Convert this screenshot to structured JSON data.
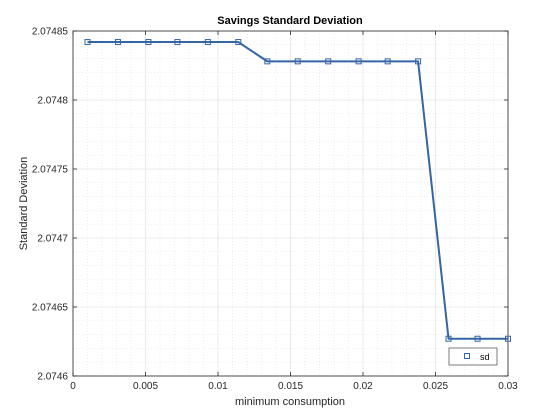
{
  "chart_data": {
    "type": "line",
    "title": "Savings Standard Deviation",
    "xlabel": "minimum consumption",
    "ylabel": "Standard Deviation",
    "xlim": [
      0,
      0.03
    ],
    "ylim": [
      2.0746,
      2.07485
    ],
    "xticks": [
      0,
      0.005,
      0.01,
      0.015,
      0.02,
      0.025,
      0.03
    ],
    "xtick_labels": [
      "0",
      "0.005",
      "0.01",
      "0.015",
      "0.02",
      "0.025",
      "0.03"
    ],
    "yticks": [
      2.0746,
      2.07465,
      2.0747,
      2.07475,
      2.0748,
      2.07485
    ],
    "ytick_labels": [
      "2.0746",
      "2.07465",
      "2.0747",
      "2.07475",
      "2.0748",
      "2.07485"
    ],
    "grid": true,
    "minor_grid": true,
    "legend_position": "bottom-right",
    "series": [
      {
        "name": "sd",
        "color": "#3465a4",
        "marker": "square",
        "x": [
          0.001,
          0.0031,
          0.0052,
          0.0072,
          0.0093,
          0.0114,
          0.0134,
          0.0155,
          0.0176,
          0.0197,
          0.0217,
          0.0238,
          0.0259,
          0.0279,
          0.03
        ],
        "y": [
          2.074842,
          2.074842,
          2.074842,
          2.074842,
          2.074842,
          2.074842,
          2.074828,
          2.074828,
          2.074828,
          2.074828,
          2.074828,
          2.074828,
          2.074627,
          2.074627,
          2.074627
        ]
      }
    ]
  }
}
